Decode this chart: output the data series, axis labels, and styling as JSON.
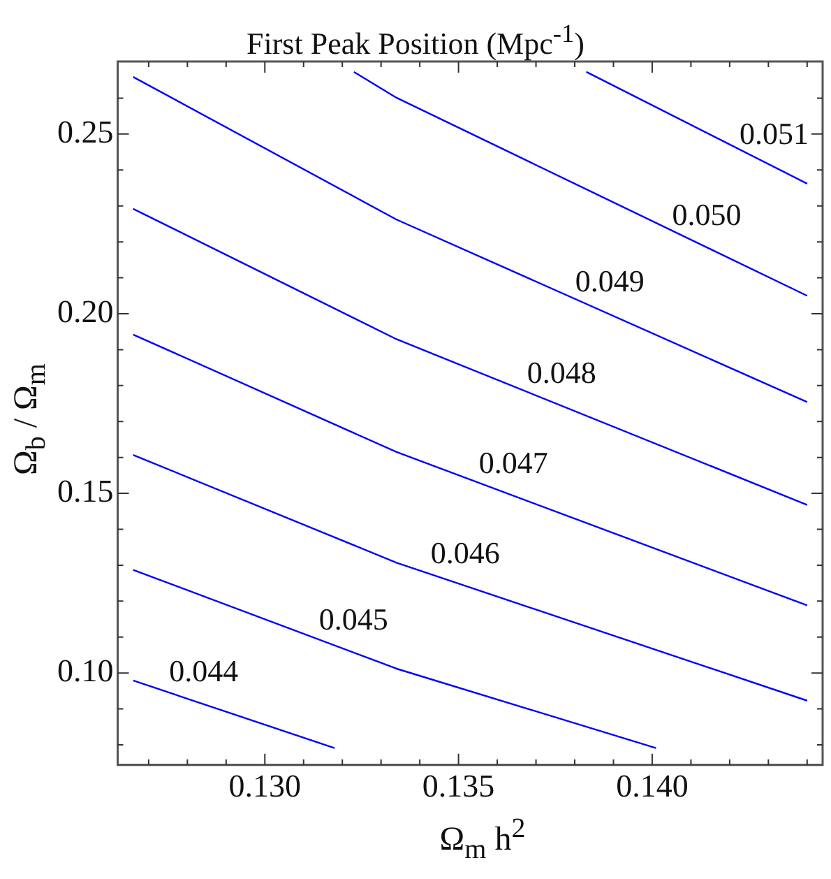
{
  "chart_data": {
    "type": "line",
    "title": "First Peak Position (Mpc$^{-1}$)",
    "xlabel": "Ω$_{m}$  h$^{2}$",
    "ylabel": "Ω$_{b}$ / Ω$_{m}$",
    "xlim": [
      0.1262,
      0.1444
    ],
    "ylim": [
      0.0744,
      0.2702
    ],
    "xticks": [
      {
        "value": 0.127,
        "label": null
      },
      {
        "value": 0.128,
        "label": null
      },
      {
        "value": 0.129,
        "label": null
      },
      {
        "value": 0.13,
        "label": "0.130"
      },
      {
        "value": 0.131,
        "label": null
      },
      {
        "value": 0.132,
        "label": null
      },
      {
        "value": 0.133,
        "label": null
      },
      {
        "value": 0.134,
        "label": null
      },
      {
        "value": 0.135,
        "label": "0.135"
      },
      {
        "value": 0.136,
        "label": null
      },
      {
        "value": 0.137,
        "label": null
      },
      {
        "value": 0.138,
        "label": null
      },
      {
        "value": 0.139,
        "label": null
      },
      {
        "value": 0.14,
        "label": "0.140"
      },
      {
        "value": 0.141,
        "label": null
      },
      {
        "value": 0.142,
        "label": null
      },
      {
        "value": 0.143,
        "label": null
      },
      {
        "value": 0.144,
        "label": null
      }
    ],
    "yticks": [
      {
        "value": 0.08,
        "label": null
      },
      {
        "value": 0.09,
        "label": null
      },
      {
        "value": 0.1,
        "label": "0.10"
      },
      {
        "value": 0.11,
        "label": null
      },
      {
        "value": 0.12,
        "label": null
      },
      {
        "value": 0.13,
        "label": null
      },
      {
        "value": 0.14,
        "label": null
      },
      {
        "value": 0.15,
        "label": "0.15"
      },
      {
        "value": 0.16,
        "label": null
      },
      {
        "value": 0.17,
        "label": null
      },
      {
        "value": 0.18,
        "label": null
      },
      {
        "value": 0.19,
        "label": null
      },
      {
        "value": 0.2,
        "label": "0.20"
      },
      {
        "value": 0.21,
        "label": null
      },
      {
        "value": 0.22,
        "label": null
      },
      {
        "value": 0.23,
        "label": null
      },
      {
        "value": 0.24,
        "label": null
      },
      {
        "value": 0.25,
        "label": "0.25"
      },
      {
        "value": 0.26,
        "label": null
      }
    ],
    "grid": false,
    "legend": false,
    "marker": "none",
    "line_style": "solid",
    "series": [
      {
        "name": "0.044",
        "color": "#0000ff",
        "x": [
          0.1266,
          0.1318
        ],
        "values": [
          0.0979,
          0.0791
        ]
      },
      {
        "name": "0.045",
        "color": "#0000ff",
        "x": [
          0.1266,
          0.1334,
          0.1401
        ],
        "values": [
          0.1287,
          0.1012,
          0.0791
        ]
      },
      {
        "name": "0.046",
        "color": "#0000ff",
        "x": [
          0.1266,
          0.1334,
          0.144
        ],
        "values": [
          0.1607,
          0.1307,
          0.0923
        ]
      },
      {
        "name": "0.047",
        "color": "#0000ff",
        "x": [
          0.1266,
          0.1334,
          0.144
        ],
        "values": [
          0.1942,
          0.1615,
          0.1188
        ]
      },
      {
        "name": "0.048",
        "color": "#0000ff",
        "x": [
          0.1266,
          0.1334,
          0.144
        ],
        "values": [
          0.2292,
          0.1929,
          0.1468
        ]
      },
      {
        "name": "0.049",
        "color": "#0000ff",
        "x": [
          0.1266,
          0.1334,
          0.144
        ],
        "values": [
          0.2659,
          0.2262,
          0.1754
        ]
      },
      {
        "name": "0.050",
        "color": "#0000ff",
        "x": [
          0.1323,
          0.1334,
          0.144
        ],
        "values": [
          0.2673,
          0.2601,
          0.205
        ]
      },
      {
        "name": "0.051",
        "color": "#0000ff",
        "x": [
          0.1383,
          0.144
        ],
        "values": [
          0.2673,
          0.2362
        ]
      }
    ]
  }
}
